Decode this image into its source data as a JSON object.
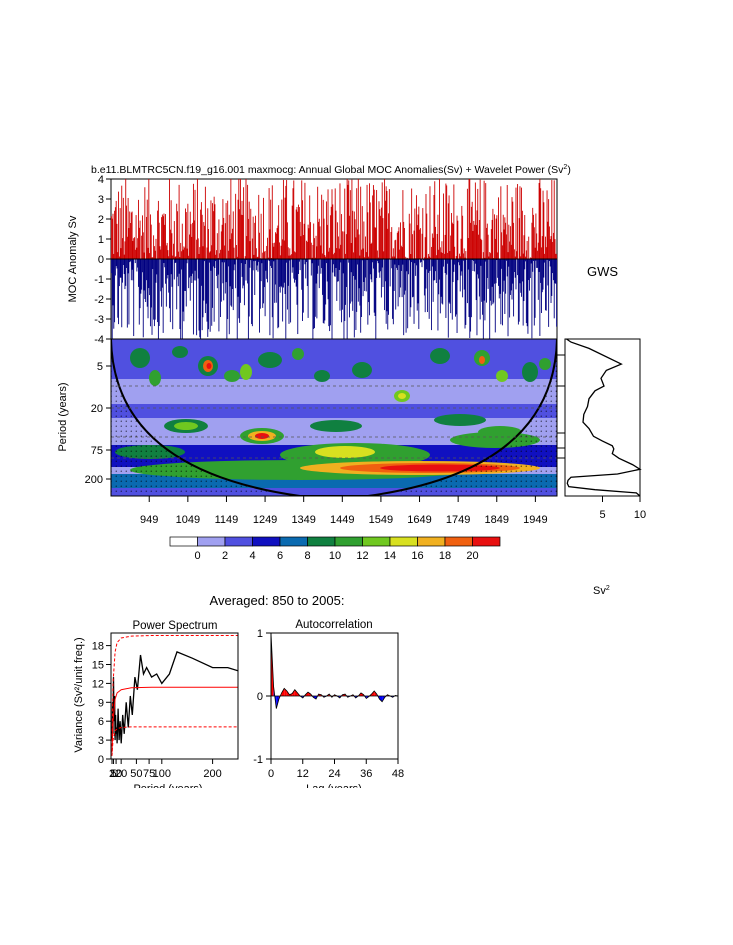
{
  "title": {
    "main": "b.e11.BLMTRC5CN.f19_g16.001 maxmocg: Annual Global MOC Anomalies(Sv) + Wavelet Power (Sv",
    "sup": "2",
    "close": ")"
  },
  "gws_label": "GWS",
  "sv2_label": {
    "base": "Sv",
    "sup": "2"
  },
  "averaged_title": "Averaged: 850 to 2005:",
  "chart_data": [
    {
      "id": "moc-anomaly",
      "type": "bar",
      "ylabel": "MOC Anomaly Sv",
      "ylim": [
        -4,
        4
      ],
      "yticks": [
        "4",
        "3",
        "2",
        "1",
        "0",
        "-1",
        "-2",
        "-3",
        "-4"
      ],
      "xlim": [
        850,
        2005
      ],
      "positive_color": "#cc0000",
      "negative_color": "#000080",
      "note": "annual anomalies 850-2005, positive filled red, negative filled blue"
    },
    {
      "id": "wavelet-power",
      "type": "heatmap",
      "ylabel": "Period (years)",
      "yticks": [
        "5",
        "20",
        "75",
        "200"
      ],
      "xticks": [
        "949",
        "1049",
        "1149",
        "1249",
        "1349",
        "1449",
        "1549",
        "1649",
        "1749",
        "1849",
        "1949"
      ],
      "xlim": [
        850,
        2005
      ],
      "colorbar": {
        "labels": [
          "0",
          "2",
          "4",
          "6",
          "8",
          "10",
          "12",
          "14",
          "16",
          "18",
          "20"
        ],
        "colors": [
          "#ffffff",
          "#a0a0f0",
          "#5050e0",
          "#1010c0",
          "#0a6ab0",
          "#108040",
          "#30a030",
          "#70c820",
          "#d8e020",
          "#f0b020",
          "#f06010",
          "#e81010"
        ]
      }
    },
    {
      "id": "global-wavelet-spectrum",
      "type": "line",
      "title": "GWS",
      "xticks": [
        "5",
        "10"
      ],
      "xlim": [
        0,
        10
      ],
      "power": [
        0.2,
        0.8,
        3.2,
        7.5,
        5.5,
        4.8,
        5.2,
        4.0,
        3.2,
        3.0,
        2.5,
        2.4,
        3.2,
        3.8,
        5.0,
        6.3,
        6.5,
        6.3,
        7.2,
        9.0,
        10.0,
        7.0,
        0.8,
        0.4,
        0.3,
        0.5,
        4.0,
        9.5,
        10.0
      ],
      "period_fraction": [
        0.0,
        0.02,
        0.06,
        0.16,
        0.2,
        0.25,
        0.3,
        0.33,
        0.38,
        0.43,
        0.48,
        0.53,
        0.57,
        0.62,
        0.65,
        0.68,
        0.7,
        0.73,
        0.76,
        0.8,
        0.83,
        0.86,
        0.88,
        0.9,
        0.92,
        0.94,
        0.96,
        0.98,
        1.0
      ]
    },
    {
      "id": "power-spectrum",
      "type": "line",
      "title": "Power Spectrum",
      "xlabel": "Period (years)",
      "ylabel": "Variance (Sv²/unit freq.)",
      "xticks": [
        "2",
        "5",
        "10",
        "20",
        "50",
        "75",
        "100",
        "200"
      ],
      "xtick_values": [
        2,
        5,
        10,
        20,
        50,
        75,
        100,
        200
      ],
      "xlim": [
        0,
        250
      ],
      "yticks": [
        "0",
        "3",
        "6",
        "9",
        "12",
        "15",
        "18"
      ],
      "ylim": [
        0,
        20
      ],
      "series": [
        {
          "name": "spectrum",
          "color": "#000000",
          "x": [
            2,
            3,
            4,
            5,
            6,
            7,
            8,
            9,
            10,
            11,
            12,
            14,
            16,
            18,
            20,
            23,
            26,
            30,
            34,
            38,
            42,
            47,
            52,
            58,
            64,
            70,
            80,
            90,
            100,
            115,
            130,
            160,
            200,
            230,
            250
          ],
          "y": [
            3,
            9,
            4,
            13,
            6,
            10,
            3,
            7,
            4,
            5,
            2.5,
            8,
            3,
            6,
            2.5,
            7,
            4,
            9,
            5,
            10,
            7,
            13,
            11,
            16.5,
            13.5,
            14.5,
            13,
            13.5,
            12,
            13.5,
            17,
            16,
            14.5,
            14.5,
            14
          ]
        },
        {
          "name": "red-noise",
          "color": "#ff0000",
          "x": [
            2,
            4,
            8,
            12,
            20,
            40,
            80,
            250
          ],
          "y": [
            1,
            6,
            9.5,
            10.5,
            11,
            11.3,
            11.4,
            11.4
          ]
        },
        {
          "name": "upper-bound",
          "color": "#ff0000",
          "x": [
            2,
            4,
            8,
            12,
            20,
            40,
            80,
            250
          ],
          "y": [
            2,
            12,
            17,
            18.5,
            19.2,
            19.5,
            19.6,
            19.6
          ]
        },
        {
          "name": "lower-bound",
          "color": "#ff0000",
          "x": [
            2,
            4,
            8,
            12,
            20,
            40,
            80,
            250
          ],
          "y": [
            0.5,
            3,
            4.5,
            4.8,
            5,
            5.1,
            5.1,
            5.1
          ]
        }
      ]
    },
    {
      "id": "autocorrelation",
      "type": "area",
      "title": "Autocorrelation",
      "xlabel": "Lag (years)",
      "xticks": [
        "0",
        "12",
        "24",
        "36",
        "48"
      ],
      "xlim": [
        0,
        48
      ],
      "yticks": [
        "1",
        "0",
        "-1"
      ],
      "ylim": [
        -1,
        1
      ],
      "lags": [
        0,
        1,
        2,
        3,
        4,
        5,
        6,
        7,
        8,
        9,
        10,
        11,
        12,
        13,
        14,
        15,
        16,
        17,
        18,
        19,
        20,
        21,
        22,
        23,
        24,
        25,
        26,
        27,
        28,
        29,
        30,
        31,
        32,
        33,
        34,
        35,
        36,
        37,
        38,
        39,
        40,
        41,
        42,
        43,
        44,
        45,
        46,
        47,
        48
      ],
      "values": [
        1,
        0.15,
        -0.2,
        -0.05,
        0.05,
        0.12,
        0.08,
        0.02,
        0.04,
        0.1,
        0.05,
        0.0,
        -0.03,
        0.02,
        0.06,
        0.03,
        -0.02,
        -0.05,
        0.03,
        0.02,
        -0.02,
        0.0,
        0.03,
        -0.02,
        0.02,
        0.0,
        -0.03,
        0.02,
        0.03,
        -0.02,
        0.0,
        0.02,
        -0.03,
        0.0,
        0.05,
        0.02,
        -0.04,
        -0.01,
        0.03,
        0.08,
        0.03,
        -0.05,
        -0.09,
        -0.02,
        0.02,
        0.0,
        -0.02,
        0.01,
        0.0
      ],
      "positive_color": "#ff0000",
      "negative_color": "#0000ff"
    }
  ]
}
